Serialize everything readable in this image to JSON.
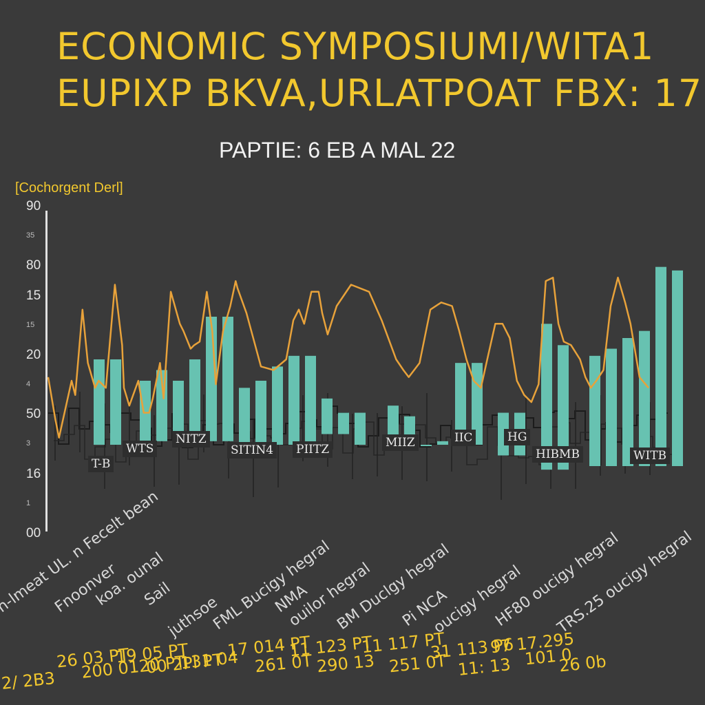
{
  "title": {
    "line1": "ECONOMIC SYMPOSIUMI/WITA1",
    "line2": "EUPIXP BKVA,URLATPOAT FBX: 17"
  },
  "subtitle": "PAPTIE: 6 EB A MAL 22",
  "legend_label": "[Cochorgent Derl]",
  "colors": {
    "background": "#3a3a3a",
    "bars": "#67c2b1",
    "line": "#e8a23a",
    "title": "#f2c82e"
  },
  "y_ticks": [
    {
      "label": "90",
      "small": false
    },
    {
      "label": "35",
      "small": true
    },
    {
      "label": "80",
      "small": false
    },
    {
      "label": "15",
      "small": false
    },
    {
      "label": "15",
      "small": true
    },
    {
      "label": "20",
      "small": false
    },
    {
      "label": "4",
      "small": true
    },
    {
      "label": "50",
      "small": false
    },
    {
      "label": "3",
      "small": true
    },
    {
      "label": "16",
      "small": false
    },
    {
      "label": "1",
      "small": true
    },
    {
      "label": "00",
      "small": false
    }
  ],
  "band_labels": [
    "T-B",
    "WTS",
    "NITZ",
    "SITIN4",
    "PIITZ",
    "MIIZ",
    "IIC",
    "HG",
    "HIBMB",
    "WITB"
  ],
  "x_category_labels": [
    "n-lmeat UL. n Fecelt bean",
    "Fnoonver",
    "koa. ounal",
    "Sail",
    "juthsoe",
    "FML Bucigy hegral",
    "NMA",
    "ouilor hegral",
    "BM Duclgy hegral",
    "Pi NCA",
    "oucigy hegral",
    "HF80 oucigy hegral",
    "TRS.25 oucigy hegral"
  ],
  "x_number_labels": [
    "2/ 2B3",
    "26 03 PT",
    "200 0120 PT",
    "19 05 PT",
    "00 2PI PT",
    "131 04",
    "17 014 PT",
    "261 0T",
    "11 123 PT",
    "290 13",
    "11 117 PT",
    "251 0T",
    "31 113 P6",
    "11: 13",
    "97 17.295",
    "101 0",
    "26 0b"
  ],
  "chart_data": {
    "type": "bar",
    "title": "ECONOMIC SYMPOSIUMI/WITA1 EUPIXP BKVA,URLATPOAT FBX: 17",
    "subtitle": "PAPTIE: 6 EB A MAL 22",
    "ylim": [
      0,
      90
    ],
    "series": [
      {
        "type": "bar",
        "values": [
          [
            24,
            48
          ],
          [
            24,
            48
          ],
          [
            25,
            42
          ],
          [
            25,
            45
          ],
          [
            25,
            42
          ],
          [
            25,
            48
          ],
          [
            25,
            60
          ],
          [
            25,
            60
          ],
          [
            24,
            40
          ],
          [
            24,
            42
          ],
          [
            24,
            46
          ],
          [
            24,
            49
          ],
          [
            24,
            49
          ],
          [
            27,
            37
          ],
          [
            27,
            33
          ],
          [
            24,
            33
          ],
          [
            24,
            35
          ],
          [
            24,
            32
          ],
          [
            24,
            24
          ],
          [
            24,
            25
          ],
          [
            24,
            47
          ],
          [
            24,
            47
          ],
          [
            21,
            33
          ],
          [
            21,
            33
          ],
          [
            17,
            58
          ],
          [
            17,
            52
          ],
          [
            18,
            49
          ],
          [
            18,
            51
          ],
          [
            18,
            54
          ],
          [
            18,
            56
          ],
          [
            18,
            74
          ],
          [
            18,
            73
          ]
        ]
      },
      {
        "type": "line",
        "values": [
          [
            0,
            43
          ],
          [
            4,
            31
          ],
          [
            6,
            26
          ],
          [
            13,
            42
          ],
          [
            15,
            38
          ],
          [
            19,
            62
          ],
          [
            22,
            47
          ],
          [
            26,
            40
          ],
          [
            28,
            42
          ],
          [
            32,
            40
          ],
          [
            37,
            69
          ],
          [
            41,
            52
          ],
          [
            42,
            40
          ],
          [
            45,
            35
          ],
          [
            50,
            42
          ],
          [
            53,
            33
          ],
          [
            56,
            33
          ],
          [
            58,
            37
          ],
          [
            62,
            47
          ],
          [
            64,
            37
          ],
          [
            68,
            67
          ],
          [
            73,
            58
          ],
          [
            75,
            56
          ],
          [
            79,
            51
          ],
          [
            81,
            52
          ],
          [
            84,
            53
          ],
          [
            88,
            67
          ],
          [
            91,
            56
          ],
          [
            93,
            41
          ],
          [
            97,
            56
          ],
          [
            101,
            63
          ],
          [
            104,
            70
          ],
          [
            105,
            68
          ],
          [
            110,
            61
          ],
          [
            118,
            46
          ],
          [
            125,
            45
          ],
          [
            132,
            48
          ],
          [
            136,
            59
          ],
          [
            139,
            62
          ],
          [
            142,
            58
          ],
          [
            146,
            67
          ],
          [
            150,
            67
          ],
          [
            152,
            61
          ],
          [
            155,
            55
          ],
          [
            160,
            63
          ],
          [
            168,
            69
          ],
          [
            178,
            67
          ],
          [
            185,
            59
          ],
          [
            193,
            48
          ],
          [
            197,
            45
          ],
          [
            200,
            43
          ],
          [
            206,
            47
          ],
          [
            212,
            62
          ],
          [
            218,
            64
          ],
          [
            224,
            63
          ],
          [
            228,
            56
          ],
          [
            232,
            48
          ],
          [
            236,
            42
          ],
          [
            240,
            40
          ],
          [
            244,
            49
          ],
          [
            248,
            58
          ],
          [
            252,
            58
          ],
          [
            256,
            54
          ],
          [
            260,
            42
          ],
          [
            264,
            38
          ],
          [
            268,
            36
          ],
          [
            272,
            41
          ],
          [
            276,
            70
          ],
          [
            280,
            71
          ],
          [
            283,
            58
          ],
          [
            286,
            53
          ],
          [
            290,
            52
          ],
          [
            295,
            48
          ],
          [
            298,
            43
          ],
          [
            301,
            40
          ],
          [
            304,
            42
          ],
          [
            308,
            45
          ],
          [
            312,
            63
          ],
          [
            316,
            71
          ],
          [
            320,
            64
          ],
          [
            323,
            58
          ],
          [
            328,
            43
          ],
          [
            333,
            40
          ]
        ]
      }
    ]
  }
}
